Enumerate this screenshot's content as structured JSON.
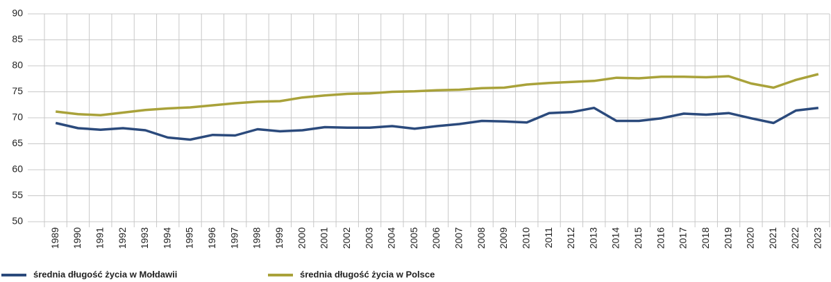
{
  "chart_data": {
    "type": "line",
    "x": [
      "1989",
      "1990",
      "1991",
      "1992",
      "1993",
      "1994",
      "1995",
      "1996",
      "1997",
      "1998",
      "1999",
      "2000",
      "2001",
      "2002",
      "2003",
      "2004",
      "2005",
      "2006",
      "2007",
      "2008",
      "2009",
      "2010",
      "2011",
      "2012",
      "2013",
      "2014",
      "2015",
      "2016",
      "2017",
      "2018",
      "2019",
      "2020",
      "2021",
      "2022",
      "2023"
    ],
    "series": [
      {
        "name": "średnia długość życia w Mołdawii",
        "color": "#2b4a7c",
        "values": [
          69.0,
          68.0,
          67.7,
          68.0,
          67.6,
          66.2,
          65.8,
          66.7,
          66.6,
          67.8,
          67.4,
          67.6,
          68.2,
          68.1,
          68.1,
          68.4,
          67.9,
          68.4,
          68.8,
          69.4,
          69.3,
          69.1,
          70.9,
          71.1,
          71.9,
          69.4,
          69.4,
          69.9,
          70.8,
          70.6,
          70.9,
          69.9,
          69.0,
          71.4,
          71.9
        ]
      },
      {
        "name": "średnia długość życia w Polsce",
        "color": "#a9a23a",
        "values": [
          71.2,
          70.7,
          70.5,
          71.0,
          71.5,
          71.8,
          72.0,
          72.4,
          72.8,
          73.1,
          73.2,
          73.9,
          74.3,
          74.6,
          74.7,
          75.0,
          75.1,
          75.3,
          75.4,
          75.7,
          75.8,
          76.4,
          76.7,
          76.9,
          77.1,
          77.7,
          77.6,
          77.9,
          77.9,
          77.8,
          78.0,
          76.6,
          75.8,
          77.3,
          78.4
        ]
      }
    ],
    "ylim": [
      50,
      90
    ],
    "yticks": [
      50,
      55,
      60,
      65,
      70,
      75,
      80,
      85,
      90
    ],
    "grid": true,
    "legend": "bottom-left"
  }
}
